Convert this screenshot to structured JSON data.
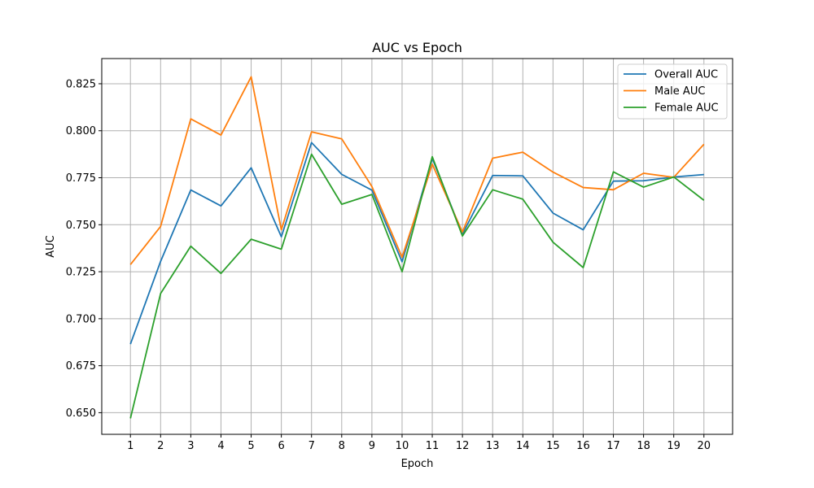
{
  "chart_data": {
    "type": "line",
    "title": "AUC vs Epoch",
    "xlabel": "Epoch",
    "ylabel": "AUC",
    "x": [
      1,
      2,
      3,
      4,
      5,
      6,
      7,
      8,
      9,
      10,
      11,
      12,
      13,
      14,
      15,
      16,
      17,
      18,
      19,
      20
    ],
    "xlim": [
      0.05,
      20.95
    ],
    "ylim": [
      0.6385,
      0.8384
    ],
    "yticks": [
      0.65,
      0.675,
      0.7,
      0.725,
      0.75,
      0.775,
      0.8,
      0.825
    ],
    "ytick_labels": [
      "0.650",
      "0.675",
      "0.700",
      "0.725",
      "0.750",
      "0.775",
      "0.800",
      "0.825"
    ],
    "grid": true,
    "legend_position": "top-right",
    "series": [
      {
        "name": "Overall AUC",
        "color": "#1f77b4",
        "values": [
          0.6865,
          0.7305,
          0.7685,
          0.76,
          0.7803,
          0.7436,
          0.7937,
          0.7768,
          0.7684,
          0.7303,
          0.7853,
          0.745,
          0.7762,
          0.776,
          0.7562,
          0.7473,
          0.7732,
          0.7734,
          0.7754,
          0.7767
        ]
      },
      {
        "name": "Male AUC",
        "color": "#ff7f0e",
        "values": [
          0.7288,
          0.7491,
          0.8063,
          0.7977,
          0.8287,
          0.7473,
          0.7994,
          0.7957,
          0.7703,
          0.7327,
          0.7822,
          0.7461,
          0.7854,
          0.7886,
          0.778,
          0.7698,
          0.7686,
          0.7774,
          0.7752,
          0.7928
        ]
      },
      {
        "name": "Female AUC",
        "color": "#2ca02c",
        "values": [
          0.647,
          0.7134,
          0.7386,
          0.7241,
          0.7423,
          0.737,
          0.7875,
          0.7609,
          0.7661,
          0.725,
          0.7862,
          0.744,
          0.7686,
          0.7636,
          0.7407,
          0.7272,
          0.7781,
          0.77,
          0.7754,
          0.763
        ]
      }
    ]
  }
}
